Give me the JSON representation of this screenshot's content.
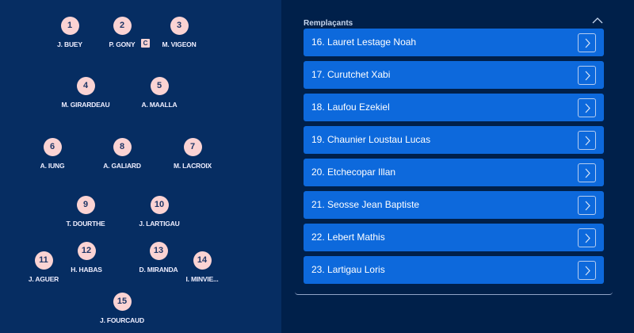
{
  "lineup": {
    "players": [
      {
        "number": "1",
        "name": "J. BUEY"
      },
      {
        "number": "2",
        "name": "P. GONY",
        "captain": true
      },
      {
        "number": "3",
        "name": "M. VIGEON"
      },
      {
        "number": "4",
        "name": "M. GIRARDEAU"
      },
      {
        "number": "5",
        "name": "A. MAALLA"
      },
      {
        "number": "6",
        "name": "A. IUNG"
      },
      {
        "number": "8",
        "name": "A. GALIARD"
      },
      {
        "number": "7",
        "name": "M. LACROIX"
      },
      {
        "number": "9",
        "name": "T. DOURTHE"
      },
      {
        "number": "10",
        "name": "J. LARTIGAU"
      },
      {
        "number": "12",
        "name": "H. HABAS"
      },
      {
        "number": "13",
        "name": "D. MIRANDA"
      },
      {
        "number": "11",
        "name": "J. AGUER"
      },
      {
        "number": "14",
        "name": "I. MINVIE..."
      },
      {
        "number": "15",
        "name": "J. FOURCAUD"
      }
    ],
    "captain_badge": "C",
    "colors": {
      "badge": "#fbd3d3",
      "pitch": "#062d62"
    }
  },
  "substitutes": {
    "title": "Remplaçants",
    "collapse_icon": "chevron-up-icon",
    "items": [
      {
        "label": "16. Lauret Lestage Noah"
      },
      {
        "label": "17. Curutchet Xabi"
      },
      {
        "label": "18. Laufou Ezekiel"
      },
      {
        "label": "19. Chaunier Loustau Lucas"
      },
      {
        "label": "20. Etchecopar Illan"
      },
      {
        "label": "21. Seosse Jean Baptiste"
      },
      {
        "label": "22. Lebert Mathis"
      },
      {
        "label": "23. Lartigau Loris"
      }
    ],
    "item_icon": "chevron-right-icon",
    "colors": {
      "row": "#0d69dc",
      "background": "#00204a"
    }
  }
}
